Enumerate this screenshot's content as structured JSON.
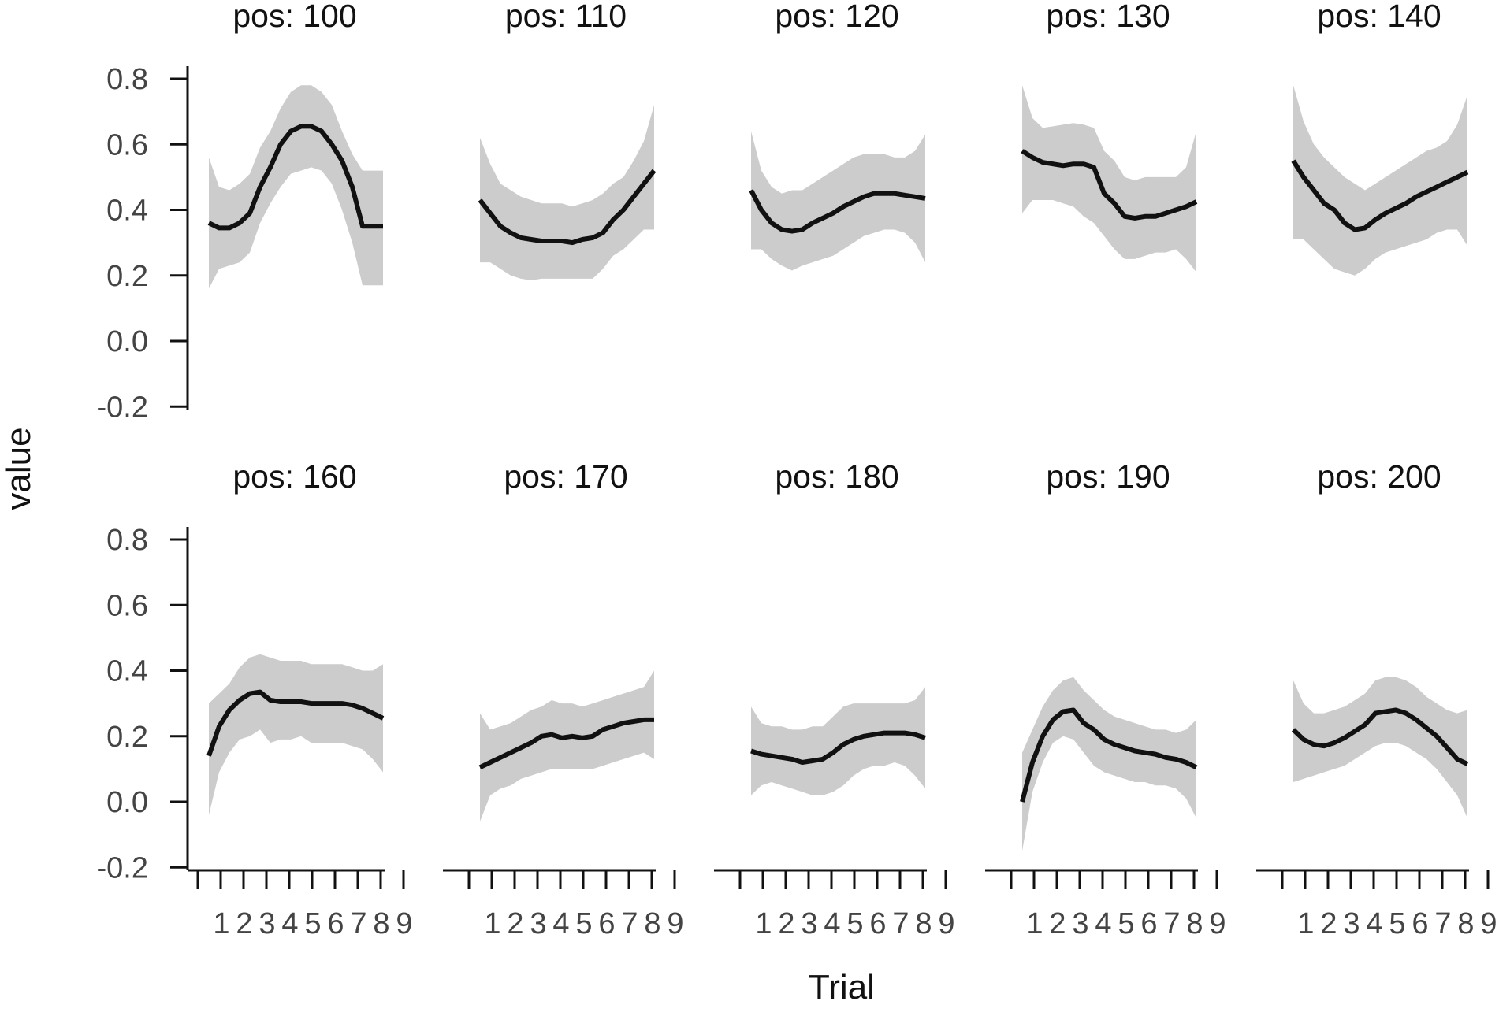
{
  "chart_data": {
    "type": "line",
    "xlabel": "Trial",
    "ylabel": "value",
    "ylim": [
      -0.2,
      0.8
    ],
    "y_ticks": [
      -0.2,
      0.0,
      0.2,
      0.4,
      0.6,
      0.8
    ],
    "y_tick_labels": [
      "-0.2",
      "0.0",
      "0.2",
      "0.4",
      "0.6",
      "0.8"
    ],
    "x_range": [
      0,
      10
    ],
    "x_ticks": [
      1,
      2,
      3,
      4,
      5,
      6,
      7,
      8,
      9
    ],
    "x_tick_labels": [
      "1",
      "2",
      "3",
      "4",
      "5",
      "6",
      "7",
      "8",
      "9"
    ],
    "x_minor_ticks": [
      0.5,
      1,
      2,
      3,
      4,
      5,
      6,
      7,
      8,
      9
    ],
    "facet_rows": 2,
    "facet_cols": 5,
    "colors": {
      "line": "#111111",
      "band": "#cccccc",
      "axis": "#111111",
      "tick_text": "#444444"
    },
    "panels": [
      {
        "title": "pos: 100",
        "x": [
          0.5,
          1,
          1.5,
          2,
          2.5,
          3,
          3.5,
          4,
          4.5,
          5,
          5.5,
          6,
          6.5,
          7,
          7.5,
          8,
          8.5,
          9
        ],
        "y": [
          0.36,
          0.345,
          0.345,
          0.36,
          0.39,
          0.47,
          0.53,
          0.6,
          0.64,
          0.655,
          0.655,
          0.64,
          0.6,
          0.55,
          0.47,
          0.35,
          0.35,
          0.35
        ],
        "ymin": [
          0.16,
          0.22,
          0.23,
          0.24,
          0.27,
          0.36,
          0.42,
          0.47,
          0.51,
          0.52,
          0.53,
          0.52,
          0.48,
          0.4,
          0.3,
          0.17,
          0.17,
          0.17
        ],
        "ymax": [
          0.56,
          0.47,
          0.46,
          0.48,
          0.51,
          0.59,
          0.64,
          0.71,
          0.76,
          0.78,
          0.78,
          0.76,
          0.72,
          0.64,
          0.57,
          0.52,
          0.52,
          0.52
        ]
      },
      {
        "title": "pos: 110",
        "x": [
          0.5,
          1,
          1.5,
          2,
          2.5,
          3,
          3.5,
          4,
          4.5,
          5,
          5.5,
          6,
          6.5,
          7,
          7.5,
          8,
          8.5,
          9
        ],
        "y": [
          0.43,
          0.39,
          0.35,
          0.33,
          0.315,
          0.31,
          0.305,
          0.305,
          0.305,
          0.3,
          0.31,
          0.315,
          0.33,
          0.37,
          0.4,
          0.44,
          0.48,
          0.52
        ],
        "ymin": [
          0.24,
          0.24,
          0.22,
          0.2,
          0.19,
          0.185,
          0.19,
          0.19,
          0.19,
          0.19,
          0.19,
          0.19,
          0.22,
          0.26,
          0.28,
          0.31,
          0.34,
          0.34
        ],
        "ymax": [
          0.62,
          0.54,
          0.48,
          0.46,
          0.44,
          0.43,
          0.42,
          0.42,
          0.42,
          0.41,
          0.42,
          0.43,
          0.45,
          0.48,
          0.5,
          0.55,
          0.61,
          0.72
        ]
      },
      {
        "title": "pos: 120",
        "x": [
          0.5,
          1,
          1.5,
          2,
          2.5,
          3,
          3.5,
          4,
          4.5,
          5,
          5.5,
          6,
          6.5,
          7,
          7.5,
          8,
          8.5,
          9
        ],
        "y": [
          0.46,
          0.4,
          0.36,
          0.34,
          0.335,
          0.34,
          0.36,
          0.375,
          0.39,
          0.41,
          0.425,
          0.44,
          0.45,
          0.45,
          0.45,
          0.445,
          0.44,
          0.435
        ],
        "ymin": [
          0.28,
          0.28,
          0.25,
          0.23,
          0.215,
          0.23,
          0.24,
          0.25,
          0.26,
          0.28,
          0.3,
          0.32,
          0.33,
          0.34,
          0.34,
          0.33,
          0.3,
          0.24
        ],
        "ymax": [
          0.64,
          0.52,
          0.47,
          0.45,
          0.46,
          0.46,
          0.48,
          0.5,
          0.52,
          0.54,
          0.56,
          0.57,
          0.57,
          0.57,
          0.56,
          0.56,
          0.58,
          0.63
        ]
      },
      {
        "title": "pos: 130",
        "x": [
          0.5,
          1,
          1.5,
          2,
          2.5,
          3,
          3.5,
          4,
          4.5,
          5,
          5.5,
          6,
          6.5,
          7,
          7.5,
          8,
          8.5,
          9
        ],
        "y": [
          0.58,
          0.56,
          0.545,
          0.54,
          0.535,
          0.54,
          0.54,
          0.53,
          0.45,
          0.42,
          0.38,
          0.375,
          0.38,
          0.38,
          0.39,
          0.4,
          0.41,
          0.425
        ],
        "ymin": [
          0.39,
          0.43,
          0.43,
          0.43,
          0.42,
          0.41,
          0.38,
          0.36,
          0.32,
          0.28,
          0.25,
          0.25,
          0.26,
          0.27,
          0.27,
          0.28,
          0.25,
          0.21
        ],
        "ymax": [
          0.78,
          0.68,
          0.65,
          0.655,
          0.66,
          0.665,
          0.66,
          0.65,
          0.58,
          0.55,
          0.5,
          0.49,
          0.5,
          0.5,
          0.5,
          0.5,
          0.53,
          0.64
        ]
      },
      {
        "title": "pos: 140",
        "x": [
          0.5,
          1,
          1.5,
          2,
          2.5,
          3,
          3.5,
          4,
          4.5,
          5,
          5.5,
          6,
          6.5,
          7,
          7.5,
          8,
          8.5,
          9
        ],
        "y": [
          0.55,
          0.5,
          0.46,
          0.42,
          0.4,
          0.36,
          0.34,
          0.345,
          0.37,
          0.39,
          0.405,
          0.42,
          0.44,
          0.455,
          0.47,
          0.485,
          0.5,
          0.515
        ],
        "ymin": [
          0.31,
          0.31,
          0.28,
          0.25,
          0.22,
          0.21,
          0.2,
          0.22,
          0.25,
          0.27,
          0.28,
          0.29,
          0.3,
          0.31,
          0.33,
          0.34,
          0.34,
          0.29
        ],
        "ymax": [
          0.78,
          0.67,
          0.6,
          0.56,
          0.53,
          0.5,
          0.48,
          0.46,
          0.48,
          0.5,
          0.52,
          0.54,
          0.56,
          0.58,
          0.59,
          0.61,
          0.66,
          0.75
        ]
      },
      {
        "title": "pos: 160",
        "x": [
          0.5,
          1,
          1.5,
          2,
          2.5,
          3,
          3.5,
          4,
          4.5,
          5,
          5.5,
          6,
          6.5,
          7,
          7.5,
          8,
          8.5,
          9
        ],
        "y": [
          0.14,
          0.23,
          0.28,
          0.31,
          0.33,
          0.335,
          0.31,
          0.305,
          0.305,
          0.305,
          0.3,
          0.3,
          0.3,
          0.3,
          0.295,
          0.285,
          0.27,
          0.255
        ],
        "ymin": [
          -0.04,
          0.09,
          0.15,
          0.19,
          0.2,
          0.22,
          0.18,
          0.19,
          0.19,
          0.2,
          0.18,
          0.18,
          0.18,
          0.18,
          0.17,
          0.16,
          0.13,
          0.09
        ],
        "ymax": [
          0.3,
          0.33,
          0.36,
          0.41,
          0.44,
          0.45,
          0.44,
          0.43,
          0.43,
          0.43,
          0.42,
          0.42,
          0.42,
          0.42,
          0.41,
          0.4,
          0.4,
          0.42
        ]
      },
      {
        "title": "pos: 170",
        "x": [
          0.5,
          1,
          1.5,
          2,
          2.5,
          3,
          3.5,
          4,
          4.5,
          5,
          5.5,
          6,
          6.5,
          7,
          7.5,
          8,
          8.5,
          9
        ],
        "y": [
          0.105,
          0.12,
          0.135,
          0.15,
          0.165,
          0.18,
          0.2,
          0.205,
          0.195,
          0.2,
          0.195,
          0.2,
          0.22,
          0.23,
          0.24,
          0.245,
          0.25,
          0.25
        ],
        "ymin": [
          -0.06,
          0.02,
          0.04,
          0.05,
          0.07,
          0.08,
          0.09,
          0.1,
          0.1,
          0.1,
          0.1,
          0.1,
          0.11,
          0.12,
          0.13,
          0.14,
          0.15,
          0.13
        ],
        "ymax": [
          0.27,
          0.22,
          0.23,
          0.24,
          0.26,
          0.28,
          0.29,
          0.31,
          0.3,
          0.3,
          0.29,
          0.3,
          0.31,
          0.32,
          0.33,
          0.34,
          0.35,
          0.4
        ]
      },
      {
        "title": "pos: 180",
        "x": [
          0.5,
          1,
          1.5,
          2,
          2.5,
          3,
          3.5,
          4,
          4.5,
          5,
          5.5,
          6,
          6.5,
          7,
          7.5,
          8,
          8.5,
          9
        ],
        "y": [
          0.155,
          0.145,
          0.14,
          0.135,
          0.13,
          0.12,
          0.125,
          0.13,
          0.15,
          0.175,
          0.19,
          0.2,
          0.205,
          0.21,
          0.21,
          0.21,
          0.205,
          0.195
        ],
        "ymin": [
          0.02,
          0.05,
          0.06,
          0.05,
          0.04,
          0.03,
          0.02,
          0.02,
          0.03,
          0.05,
          0.08,
          0.1,
          0.11,
          0.11,
          0.12,
          0.11,
          0.08,
          0.04
        ],
        "ymax": [
          0.29,
          0.24,
          0.23,
          0.23,
          0.22,
          0.22,
          0.23,
          0.23,
          0.26,
          0.29,
          0.3,
          0.3,
          0.3,
          0.3,
          0.3,
          0.3,
          0.31,
          0.35
        ]
      },
      {
        "title": "pos: 190",
        "x": [
          0.5,
          1,
          1.5,
          2,
          2.5,
          3,
          3.5,
          4,
          4.5,
          5,
          5.5,
          6,
          6.5,
          7,
          7.5,
          8,
          8.5,
          9
        ],
        "y": [
          0.0,
          0.12,
          0.2,
          0.25,
          0.275,
          0.28,
          0.24,
          0.22,
          0.19,
          0.175,
          0.165,
          0.155,
          0.15,
          0.145,
          0.135,
          0.13,
          0.12,
          0.105
        ],
        "ymin": [
          -0.15,
          0.03,
          0.12,
          0.18,
          0.2,
          0.19,
          0.15,
          0.11,
          0.09,
          0.08,
          0.07,
          0.06,
          0.06,
          0.05,
          0.05,
          0.04,
          0.01,
          -0.05
        ],
        "ymax": [
          0.15,
          0.22,
          0.29,
          0.34,
          0.37,
          0.38,
          0.34,
          0.31,
          0.28,
          0.26,
          0.25,
          0.24,
          0.23,
          0.22,
          0.22,
          0.21,
          0.22,
          0.25
        ]
      },
      {
        "title": "pos: 200",
        "x": [
          0.5,
          1,
          1.5,
          2,
          2.5,
          3,
          3.5,
          4,
          4.5,
          5,
          5.5,
          6,
          6.5,
          7,
          7.5,
          8,
          8.5,
          9
        ],
        "y": [
          0.22,
          0.19,
          0.175,
          0.17,
          0.18,
          0.195,
          0.215,
          0.235,
          0.27,
          0.275,
          0.28,
          0.27,
          0.25,
          0.225,
          0.2,
          0.165,
          0.13,
          0.115
        ],
        "ymin": [
          0.06,
          0.07,
          0.08,
          0.09,
          0.1,
          0.11,
          0.13,
          0.15,
          0.17,
          0.18,
          0.18,
          0.17,
          0.15,
          0.13,
          0.1,
          0.06,
          0.02,
          -0.05
        ],
        "ymax": [
          0.37,
          0.3,
          0.27,
          0.27,
          0.28,
          0.29,
          0.31,
          0.33,
          0.37,
          0.38,
          0.38,
          0.37,
          0.35,
          0.32,
          0.3,
          0.28,
          0.27,
          0.28
        ]
      }
    ]
  }
}
